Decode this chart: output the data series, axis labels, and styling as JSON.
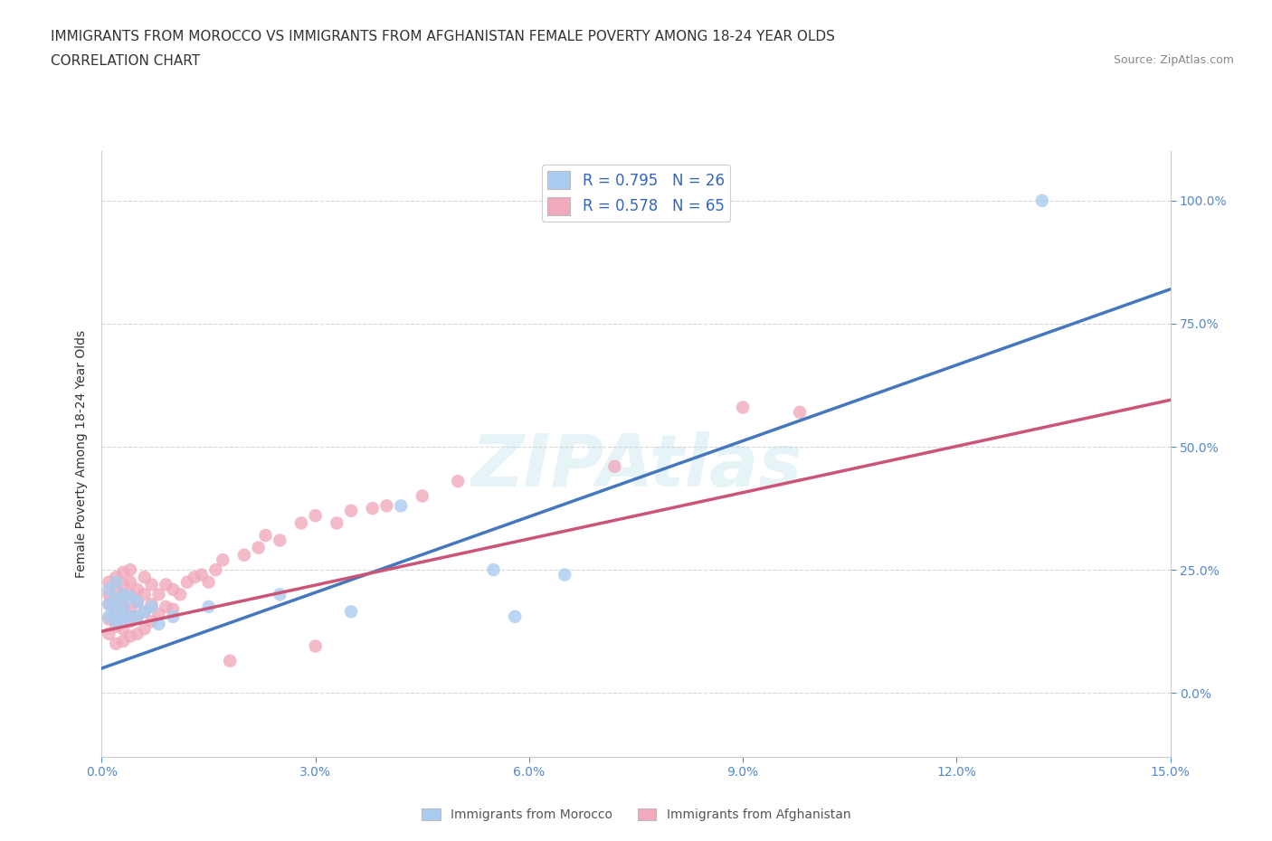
{
  "title": "IMMIGRANTS FROM MOROCCO VS IMMIGRANTS FROM AFGHANISTAN FEMALE POVERTY AMONG 18-24 YEAR OLDS",
  "subtitle": "CORRELATION CHART",
  "source": "Source: ZipAtlas.com",
  "ylabel": "Female Poverty Among 18-24 Year Olds",
  "xlim": [
    0.0,
    0.15
  ],
  "ylim": [
    -0.13,
    1.1
  ],
  "xticks": [
    0.0,
    0.03,
    0.06,
    0.09,
    0.12,
    0.15
  ],
  "xtick_labels": [
    "0.0%",
    "3.0%",
    "6.0%",
    "9.0%",
    "12.0%",
    "15.0%"
  ],
  "yticks": [
    0.0,
    0.25,
    0.5,
    0.75,
    1.0
  ],
  "ytick_labels": [
    "0.0%",
    "25.0%",
    "50.0%",
    "75.0%",
    "100.0%"
  ],
  "watermark": "ZIPAtlas",
  "morocco_color": "#aaccf0",
  "morocco_line_color": "#4477bb",
  "afghanistan_color": "#f0aabb",
  "afghanistan_line_color": "#cc5577",
  "morocco_R": 0.795,
  "morocco_N": 26,
  "afghanistan_R": 0.578,
  "afghanistan_N": 65,
  "morocco_scatter_x": [
    0.001,
    0.001,
    0.001,
    0.002,
    0.002,
    0.002,
    0.002,
    0.003,
    0.003,
    0.003,
    0.004,
    0.004,
    0.005,
    0.005,
    0.006,
    0.007,
    0.008,
    0.01,
    0.015,
    0.025,
    0.035,
    0.042,
    0.055,
    0.058,
    0.065,
    0.132
  ],
  "morocco_scatter_y": [
    0.155,
    0.18,
    0.21,
    0.145,
    0.165,
    0.19,
    0.225,
    0.15,
    0.175,
    0.2,
    0.155,
    0.195,
    0.155,
    0.185,
    0.165,
    0.175,
    0.14,
    0.155,
    0.175,
    0.2,
    0.165,
    0.38,
    0.25,
    0.155,
    0.24,
    1.0
  ],
  "afghanistan_scatter_x": [
    0.001,
    0.001,
    0.001,
    0.001,
    0.001,
    0.002,
    0.002,
    0.002,
    0.002,
    0.002,
    0.002,
    0.003,
    0.003,
    0.003,
    0.003,
    0.003,
    0.003,
    0.003,
    0.004,
    0.004,
    0.004,
    0.004,
    0.004,
    0.004,
    0.005,
    0.005,
    0.005,
    0.005,
    0.006,
    0.006,
    0.006,
    0.006,
    0.007,
    0.007,
    0.007,
    0.008,
    0.008,
    0.009,
    0.009,
    0.01,
    0.01,
    0.011,
    0.012,
    0.013,
    0.014,
    0.015,
    0.016,
    0.017,
    0.018,
    0.02,
    0.022,
    0.023,
    0.025,
    0.028,
    0.03,
    0.03,
    0.033,
    0.035,
    0.038,
    0.04,
    0.045,
    0.05,
    0.072,
    0.09,
    0.098
  ],
  "afghanistan_scatter_y": [
    0.12,
    0.15,
    0.18,
    0.2,
    0.225,
    0.1,
    0.135,
    0.16,
    0.185,
    0.21,
    0.235,
    0.105,
    0.13,
    0.155,
    0.175,
    0.195,
    0.22,
    0.245,
    0.115,
    0.145,
    0.17,
    0.2,
    0.225,
    0.25,
    0.12,
    0.155,
    0.185,
    0.21,
    0.13,
    0.165,
    0.2,
    0.235,
    0.145,
    0.18,
    0.22,
    0.16,
    0.2,
    0.175,
    0.22,
    0.17,
    0.21,
    0.2,
    0.225,
    0.235,
    0.24,
    0.225,
    0.25,
    0.27,
    0.065,
    0.28,
    0.295,
    0.32,
    0.31,
    0.345,
    0.095,
    0.36,
    0.345,
    0.37,
    0.375,
    0.38,
    0.4,
    0.43,
    0.46,
    0.58,
    0.57
  ],
  "morocco_line_x0": 0.0,
  "morocco_line_x1": 0.15,
  "morocco_line_y0": 0.05,
  "morocco_line_y1": 0.82,
  "afghanistan_line_x0": 0.0,
  "afghanistan_line_x1": 0.15,
  "afghanistan_line_y0": 0.125,
  "afghanistan_line_y1": 0.595,
  "background_color": "#ffffff",
  "grid_color": "#cccccc",
  "title_fontsize": 11,
  "subtitle_fontsize": 11,
  "source_fontsize": 9,
  "axis_label_fontsize": 10,
  "tick_fontsize": 10,
  "legend_fontsize": 12,
  "scatter_size": 110
}
